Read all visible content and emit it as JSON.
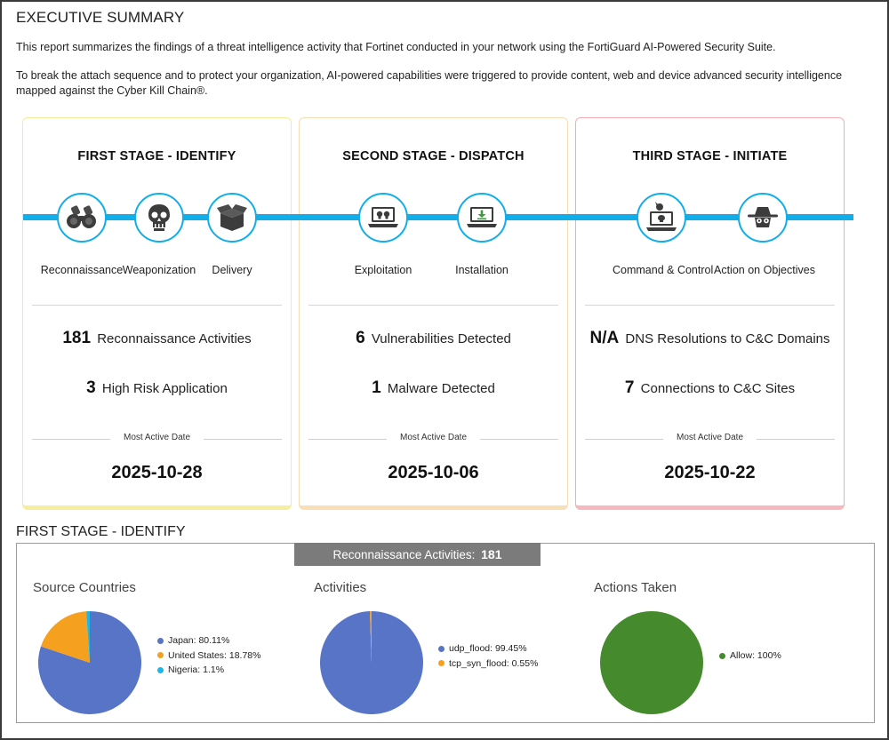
{
  "header": {
    "title": "EXECUTIVE SUMMARY",
    "paragraph1": "This report summarizes the findings of a threat intelligence activity that Fortinet conducted in your network using the FortiGuard AI-Powered Security Suite.",
    "paragraph2": "To break the attach sequence and to protect your organization, AI-powered capabilities were triggered to provide content, web and device advanced security intelligence mapped against the Cyber Kill Chain®."
  },
  "colors": {
    "accent": "#12aeea",
    "card1_border": "#f6ea9f",
    "card2_border": "#f7ddb6",
    "card3_border": "#f3aeb4",
    "pie_blue": "#5874c6",
    "pie_orange": "#f5a11f",
    "pie_cyan": "#1eb6e8",
    "pie_green": "#458a2d"
  },
  "stages": [
    {
      "title": "FIRST STAGE - IDENTIFY",
      "steps": [
        {
          "label": "Reconnaissance",
          "icon": "binoculars-icon"
        },
        {
          "label": "Weaponization",
          "icon": "skull-icon"
        },
        {
          "label": "Delivery",
          "icon": "package-icon"
        }
      ],
      "metric1_value": "181",
      "metric1_label": "Reconnaissance Activities",
      "metric2_value": "3",
      "metric2_label": "High Risk Application",
      "most_active_label": "Most Active Date",
      "date": "2025-10-28"
    },
    {
      "title": "SECOND STAGE - DISPATCH",
      "steps": [
        {
          "label": "Exploitation",
          "icon": "laptop-skull-icon"
        },
        {
          "label": "Installation",
          "icon": "laptop-download-icon"
        }
      ],
      "metric1_value": "6",
      "metric1_label": "Vulnerabilities Detected",
      "metric2_value": "1",
      "metric2_label": "Malware Detected",
      "most_active_label": "Most Active Date",
      "date": "2025-10-06"
    },
    {
      "title": "THIRD STAGE - INITIATE",
      "steps": [
        {
          "label": "Command & Control",
          "icon": "laptop-joystick-icon"
        },
        {
          "label": "Action on Objectives",
          "icon": "hacker-icon"
        }
      ],
      "metric1_value": "N/A",
      "metric1_label": "DNS Resolutions to C&C Domains",
      "metric2_value": "7",
      "metric2_label": "Connections to C&C Sites",
      "most_active_label": "Most Active Date",
      "date": "2025-10-22"
    }
  ],
  "identify_section": {
    "title": "FIRST STAGE - IDENTIFY",
    "header_label": "Reconnaissance Activities:",
    "header_value": "181"
  },
  "chart_data": [
    {
      "type": "pie",
      "title": "Source Countries",
      "categories": [
        "Japan",
        "United States",
        "Nigeria"
      ],
      "values": [
        80.11,
        18.78,
        1.1
      ],
      "legend": [
        "Japan: 80.11%",
        "United States: 18.78%",
        "Nigeria: 1.1%"
      ],
      "colors": [
        "#5874c6",
        "#f5a11f",
        "#1eb6e8"
      ],
      "legend_position": "right"
    },
    {
      "type": "pie",
      "title": "Activities",
      "categories": [
        "udp_flood",
        "tcp_syn_flood"
      ],
      "values": [
        99.45,
        0.55
      ],
      "legend": [
        "udp_flood: 99.45%",
        "tcp_syn_flood: 0.55%"
      ],
      "colors": [
        "#5874c6",
        "#f5a11f"
      ],
      "legend_position": "right"
    },
    {
      "type": "pie",
      "title": "Actions Taken",
      "categories": [
        "Allow"
      ],
      "values": [
        100
      ],
      "legend": [
        "Allow: 100%"
      ],
      "colors": [
        "#458a2d"
      ],
      "legend_position": "right"
    }
  ]
}
